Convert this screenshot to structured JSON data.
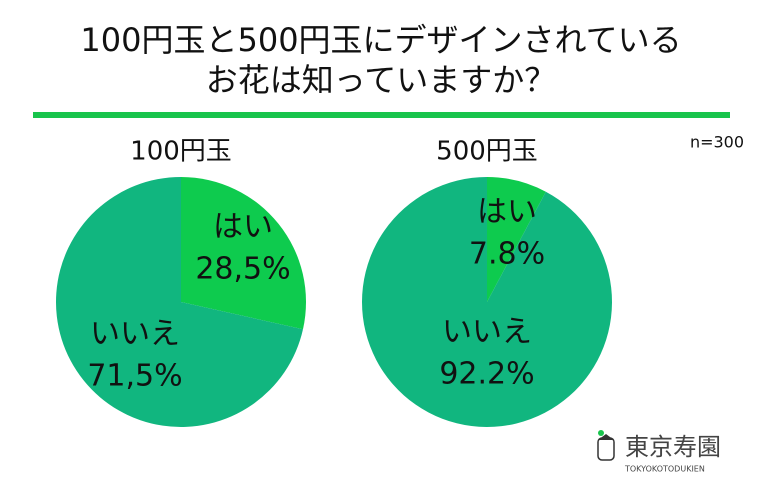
{
  "title": [
    "100円玉と500円玉にデザインされている",
    "お花は知っていますか？"
  ],
  "note": "n=300",
  "logo": {
    "name": "東京寿園",
    "romaji": "TOKYOKOTODUKIEN"
  },
  "chart_data": [
    {
      "type": "pie",
      "title": "100円玉",
      "categories": [
        "はい",
        "いいえ"
      ],
      "values": [
        28.5,
        71.5
      ],
      "value_labels": [
        "28,5%",
        "71,5%"
      ],
      "colors": [
        "#0ecb4e",
        "#11b67f"
      ]
    },
    {
      "type": "pie",
      "title": "500円玉",
      "categories": [
        "はい",
        "いいえ"
      ],
      "values": [
        7.8,
        92.2
      ],
      "value_labels": [
        "7.8%",
        "92.2%"
      ],
      "colors": [
        "#0ecb4e",
        "#11b67f"
      ]
    }
  ]
}
